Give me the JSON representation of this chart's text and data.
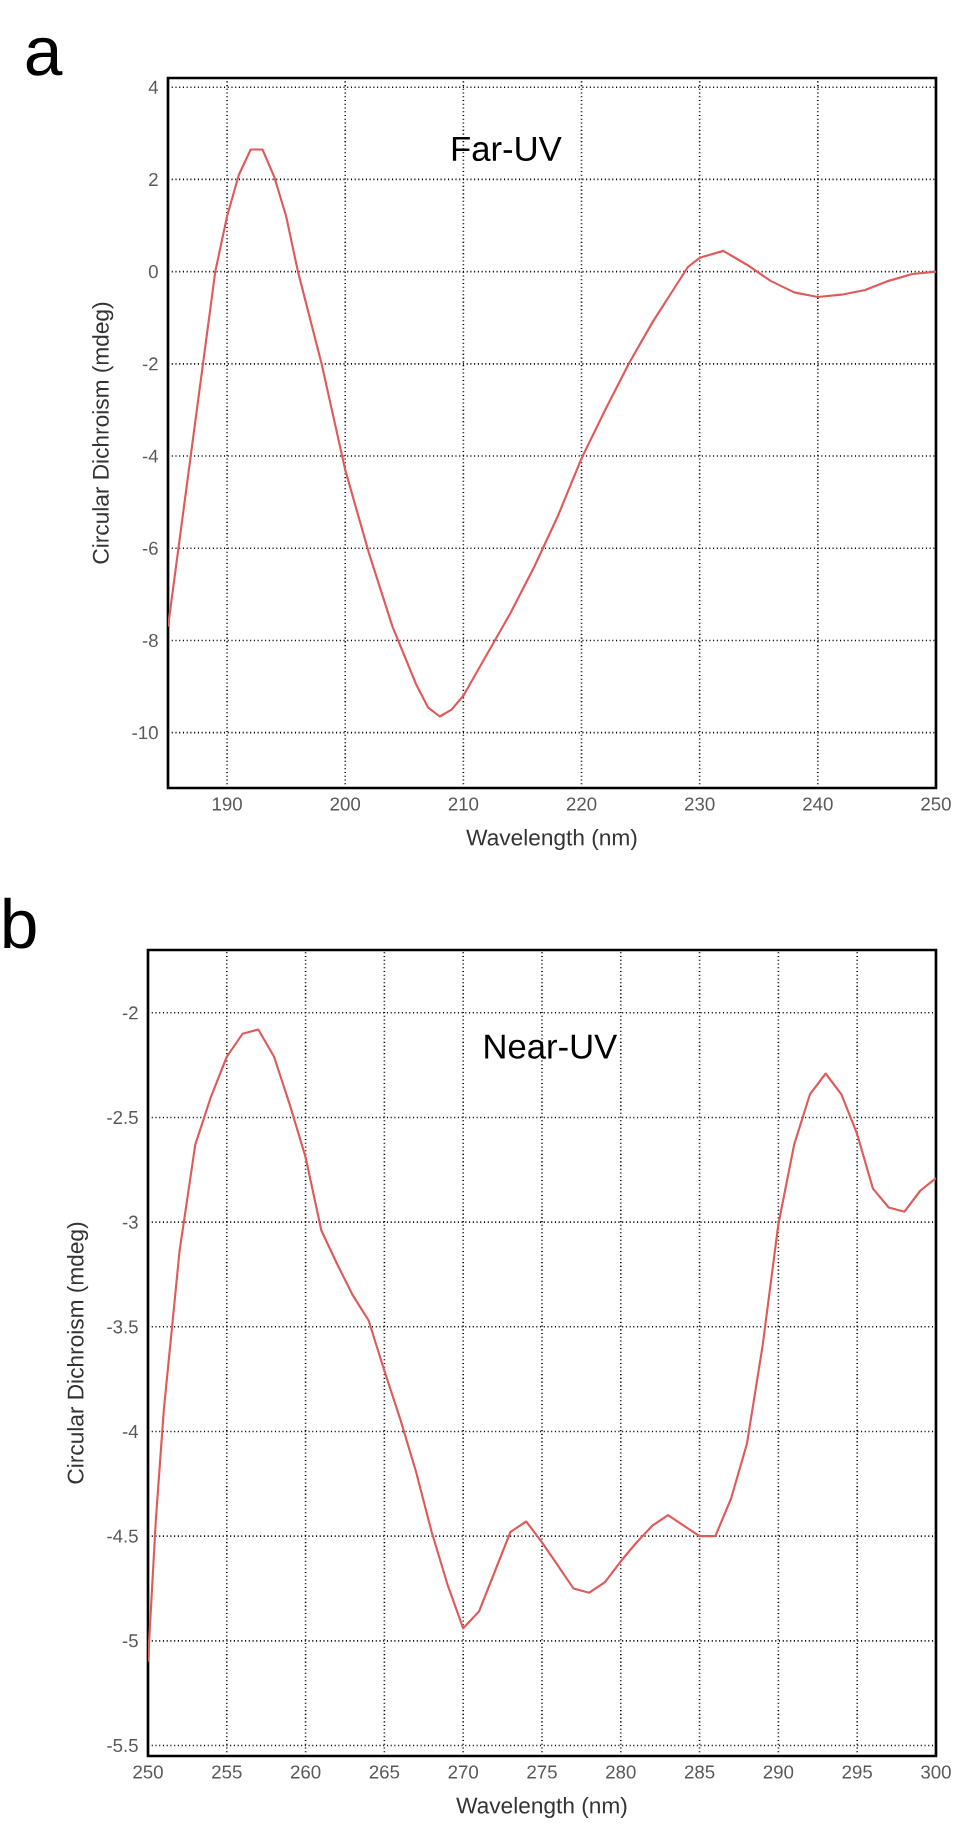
{
  "chart_data": [
    {
      "type": "line",
      "title": "a",
      "xlabel": "Wavelength (nm)",
      "ylabel": "Circular Dichroism (mdeg)",
      "annotations": [
        "Far-UV"
      ],
      "x": [
        185,
        189,
        190,
        191,
        192,
        193,
        194,
        195,
        196,
        198,
        200,
        202,
        204,
        206,
        207,
        208,
        209,
        210,
        212,
        214,
        216,
        218,
        220,
        222,
        224,
        226,
        228,
        229,
        230,
        232,
        234,
        236,
        238,
        240,
        242,
        244,
        246,
        248,
        250
      ],
      "series": [
        {
          "color": "#e05a5a",
          "values": [
            -7.7,
            0.0,
            1.2,
            2.1,
            2.65,
            2.65,
            2.05,
            1.2,
            0.0,
            -2.0,
            -4.3,
            -6.1,
            -7.7,
            -8.95,
            -9.45,
            -9.65,
            -9.5,
            -9.2,
            -8.3,
            -7.4,
            -6.4,
            -5.3,
            -4.05,
            -3.0,
            -2.0,
            -1.1,
            -0.3,
            0.1,
            0.3,
            0.45,
            0.15,
            -0.2,
            -0.45,
            -0.55,
            -0.5,
            -0.4,
            -0.2,
            -0.05,
            0.0
          ]
        }
      ],
      "xlim": [
        185,
        250
      ],
      "ylim": [
        -11.2,
        4.2
      ],
      "xticks": [
        190,
        200,
        210,
        220,
        230,
        240,
        250
      ],
      "yticks": [
        -10,
        -8,
        -6,
        -4,
        -2,
        0,
        2,
        4
      ],
      "grid": true,
      "line_style": "solid"
    },
    {
      "type": "line",
      "title": "b",
      "xlabel": "Wavelength (nm)",
      "ylabel": "Circular Dichroism (mdeg)",
      "annotations": [
        "Near-UV"
      ],
      "x": [
        250,
        250.5,
        251,
        252,
        253,
        254,
        255,
        256,
        257,
        258,
        259,
        260,
        261,
        262,
        263,
        264,
        265,
        266,
        267,
        268,
        269,
        270,
        271,
        272,
        273,
        274,
        275,
        276,
        277,
        278,
        279,
        280,
        281,
        282,
        283,
        284,
        285,
        286,
        287,
        288,
        289,
        290,
        291,
        292,
        293,
        294,
        295,
        296,
        297,
        298,
        299,
        300
      ],
      "series": [
        {
          "color": "#e05a5a",
          "values": [
            -5.1,
            -4.42,
            -3.9,
            -3.14,
            -2.63,
            -2.4,
            -2.21,
            -2.1,
            -2.08,
            -2.21,
            -2.44,
            -2.69,
            -3.04,
            -3.2,
            -3.35,
            -3.47,
            -3.71,
            -3.94,
            -4.19,
            -4.48,
            -4.73,
            -4.94,
            -4.86,
            -4.67,
            -4.48,
            -4.43,
            -4.53,
            -4.64,
            -4.75,
            -4.77,
            -4.72,
            -4.62,
            -4.53,
            -4.45,
            -4.4,
            -4.45,
            -4.5,
            -4.5,
            -4.32,
            -4.06,
            -3.59,
            -3.01,
            -2.63,
            -2.39,
            -2.29,
            -2.39,
            -2.58,
            -2.84,
            -2.93,
            -2.95,
            -2.85,
            -2.79
          ]
        }
      ],
      "xlim": [
        250,
        300
      ],
      "ylim": [
        -5.55,
        -1.7
      ],
      "xticks": [
        250,
        255,
        260,
        265,
        270,
        275,
        280,
        285,
        290,
        295,
        300
      ],
      "yticks": [
        -5.5,
        -5,
        -4.5,
        -4,
        -3.5,
        -3,
        -2.5,
        -2
      ],
      "grid": true,
      "line_style": "solid"
    }
  ]
}
